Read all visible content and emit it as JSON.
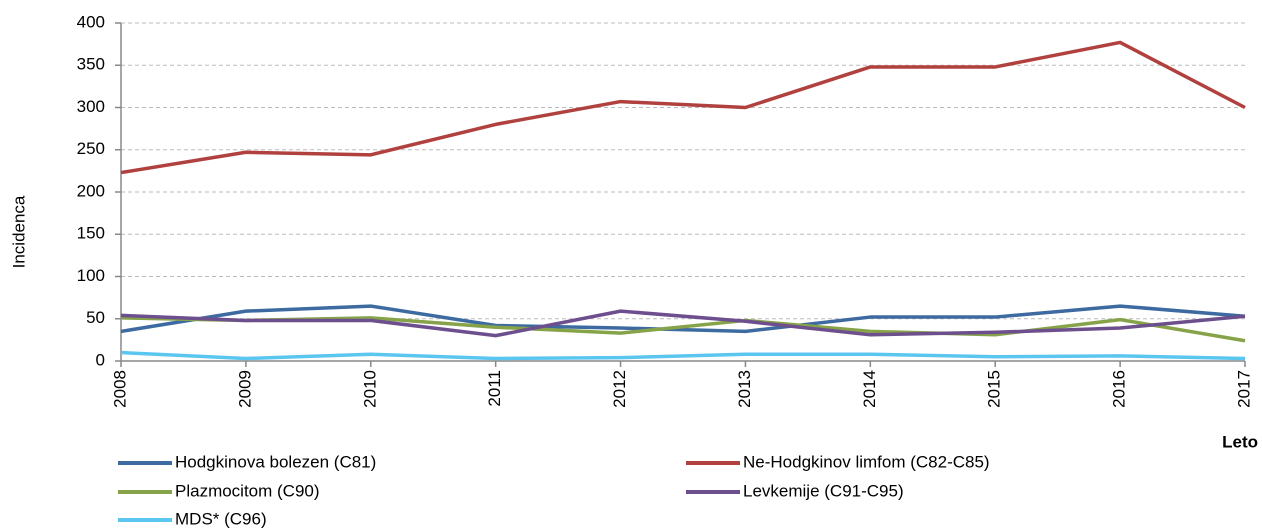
{
  "chart_data": {
    "type": "line",
    "y_label": "Incidenca",
    "x_label": "Leto",
    "categories": [
      "2008",
      "2009",
      "2010",
      "2011",
      "2012",
      "2013",
      "2014",
      "2015",
      "2016",
      "2017"
    ],
    "series": [
      {
        "name": "Hodgkinova bolezen (C81)",
        "color": "#3d6aa0",
        "values": [
          35,
          59,
          65,
          42,
          39,
          35,
          52,
          52,
          65,
          53
        ]
      },
      {
        "name": "Ne-Hodgkinov limfom (C82-C85)",
        "color": "#b0413e",
        "values": [
          223,
          247,
          244,
          280,
          307,
          300,
          348,
          348,
          377,
          300
        ]
      },
      {
        "name": "Plazmocitom (C90)",
        "color": "#86a34a",
        "values": [
          51,
          48,
          51,
          40,
          33,
          48,
          35,
          31,
          49,
          24
        ]
      },
      {
        "name": "Levkemije (C91-C95)",
        "color": "#6e4f8e",
        "values": [
          54,
          48,
          48,
          30,
          59,
          47,
          31,
          34,
          39,
          53
        ]
      },
      {
        "name": "MDS* (C96)",
        "color": "#5bc6f0",
        "values": [
          10,
          3,
          8,
          3,
          4,
          8,
          8,
          5,
          6,
          3
        ]
      }
    ],
    "ylim": [
      0,
      400
    ],
    "yticks": [
      0,
      50,
      100,
      150,
      200,
      250,
      300,
      350,
      400
    ],
    "grid": true
  }
}
